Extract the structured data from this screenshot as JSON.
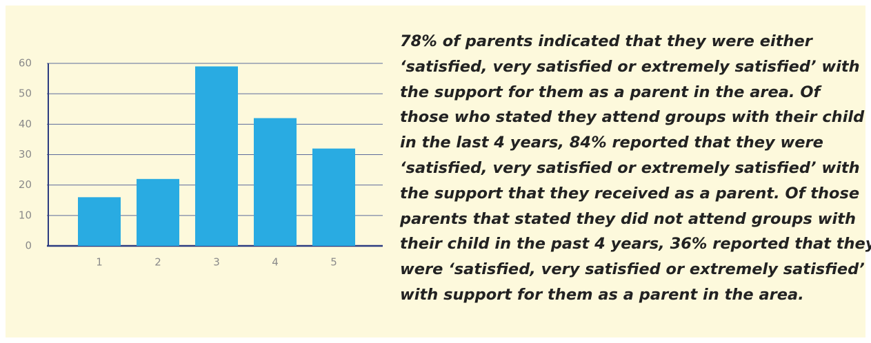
{
  "chart_data": {
    "type": "bar",
    "categories": [
      "1",
      "2",
      "3",
      "4",
      "5"
    ],
    "values": [
      16,
      22,
      59,
      42,
      32
    ],
    "color": "#29abe2",
    "ylim": [
      0,
      60
    ],
    "yticks": [
      0,
      10,
      20,
      30,
      40,
      50,
      60
    ],
    "grid": true
  },
  "text": {
    "lines": [
      "78% of parents indicated that they were either",
      "‘satisfied, very satisfied or extremely satisfied’ with",
      "the support for them as a parent in the area. Of",
      "those who stated they attend groups with their child",
      "in the last 4 years, 84% reported that they were",
      "‘satisfied, very satisfied or extremely satisfied’ with",
      "the support that they received as a parent. Of those",
      "parents that stated they did not attend groups with",
      "their child in the past 4 years, 36% reported that they",
      "were ‘satisfied, very satisfied or extremely satisfied’",
      "with support for them as a parent in the area."
    ]
  }
}
